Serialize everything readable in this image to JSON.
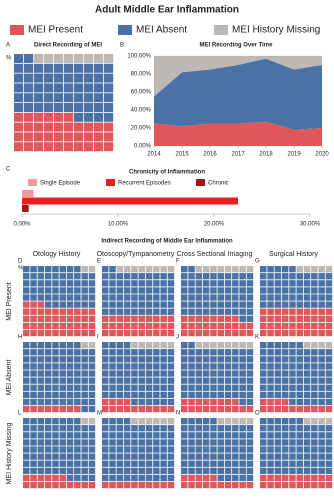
{
  "header": {
    "title": "Adult Middle Ear Inflammation",
    "legend": [
      {
        "name": "MEI Present",
        "color": "#e0575b"
      },
      {
        "name": "MEI Absent",
        "color": "#4a72a6"
      },
      {
        "name": "MEI History Missing",
        "color": "#bdb8b3"
      }
    ]
  },
  "chart_data": [
    {
      "type": "waffle",
      "panel": "A",
      "title": "Direct Recording of MEI",
      "unit_label": "%",
      "categories": [
        "MEI Present",
        "MEI Absent",
        "MEI History Missing"
      ],
      "colors": [
        "#e0575b",
        "#4a72a6",
        "#bdb8b3"
      ],
      "values": [
        36,
        56,
        8
      ]
    },
    {
      "type": "area",
      "panel": "B",
      "title": "MEI Recording Over Time",
      "x": [
        2014,
        2015,
        2016,
        2017,
        2018,
        2019,
        2020
      ],
      "xlim": [
        2014,
        2020
      ],
      "xticks": [
        2014,
        2015,
        2016,
        2017,
        2018,
        2019,
        2020
      ],
      "ylim": [
        0,
        100
      ],
      "yticks": [
        {
          "value": 0,
          "label": "0.00%"
        },
        {
          "value": 20,
          "label": "20.00%"
        },
        {
          "value": 40,
          "label": "40.00%"
        },
        {
          "value": 60,
          "label": "60.00%"
        },
        {
          "value": 80,
          "label": "80.00%"
        },
        {
          "value": 100,
          "label": "100.00%"
        }
      ],
      "series": [
        {
          "name": "MEI Present",
          "color": "#e0575b",
          "values": [
            25,
            22,
            25,
            25,
            27,
            18,
            20
          ]
        },
        {
          "name": "MEI Absent",
          "color": "#4a72a6",
          "values": [
            30,
            60,
            60,
            65,
            70,
            67,
            70
          ]
        },
        {
          "name": "MEI History Missing",
          "color": "#bdb8b3",
          "values": [
            45,
            18,
            15,
            10,
            3,
            15,
            10
          ]
        }
      ]
    },
    {
      "type": "hbar",
      "panel": "C",
      "title": "Chronicity of Inflammation",
      "xlim": [
        0,
        30
      ],
      "xticks": [
        {
          "value": 0,
          "label": "0.00%"
        },
        {
          "value": 10,
          "label": "10.00%"
        },
        {
          "value": 20,
          "label": "20.00%"
        },
        {
          "value": 30,
          "label": "30.00%"
        }
      ],
      "series": [
        {
          "name": "Single Episode",
          "color": "#f09a9c",
          "values": [
            1.2
          ]
        },
        {
          "name": "Recurrent Episodes",
          "color": "#ee1c1c",
          "values": [
            22.5
          ]
        },
        {
          "name": "Chronic",
          "color": "#a61414",
          "values": [
            0.7
          ]
        }
      ]
    },
    {
      "type": "waffle-grid",
      "title": "Indirect Recording of Middle Ear Inflammation",
      "columns": [
        "Otology History",
        "Otoscopy/Tympanometry",
        "Cross Sectional Imaging",
        "Surgical History"
      ],
      "rows": [
        "MEI Present",
        "MEI Absent",
        "MEI History Missing"
      ],
      "categories": [
        "MEI Present",
        "MEI Absent",
        "MEI History Missing"
      ],
      "colors": [
        "#e0575b",
        "#4a72a6",
        "#bdb8b3"
      ],
      "panels": [
        {
          "panel": "D",
          "unit_label": "%",
          "values": [
            43,
            55,
            2
          ]
        },
        {
          "panel": "E",
          "values": [
            30,
            62,
            8
          ]
        },
        {
          "panel": "F",
          "values": [
            28,
            64,
            8
          ]
        },
        {
          "panel": "G",
          "values": [
            40,
            55,
            5
          ]
        },
        {
          "panel": "H",
          "values": [
            8,
            90,
            2
          ]
        },
        {
          "panel": "I",
          "values": [
            14,
            80,
            6
          ]
        },
        {
          "panel": "J",
          "values": [
            18,
            74,
            8
          ]
        },
        {
          "panel": "K",
          "values": [
            14,
            82,
            4
          ]
        },
        {
          "panel": "L",
          "values": [
            16,
            82,
            2
          ]
        },
        {
          "panel": "M",
          "values": [
            10,
            84,
            6
          ]
        },
        {
          "panel": "N",
          "values": [
            15,
            80,
            5
          ]
        },
        {
          "panel": "O",
          "values": [
            20,
            76,
            4
          ]
        }
      ]
    }
  ]
}
